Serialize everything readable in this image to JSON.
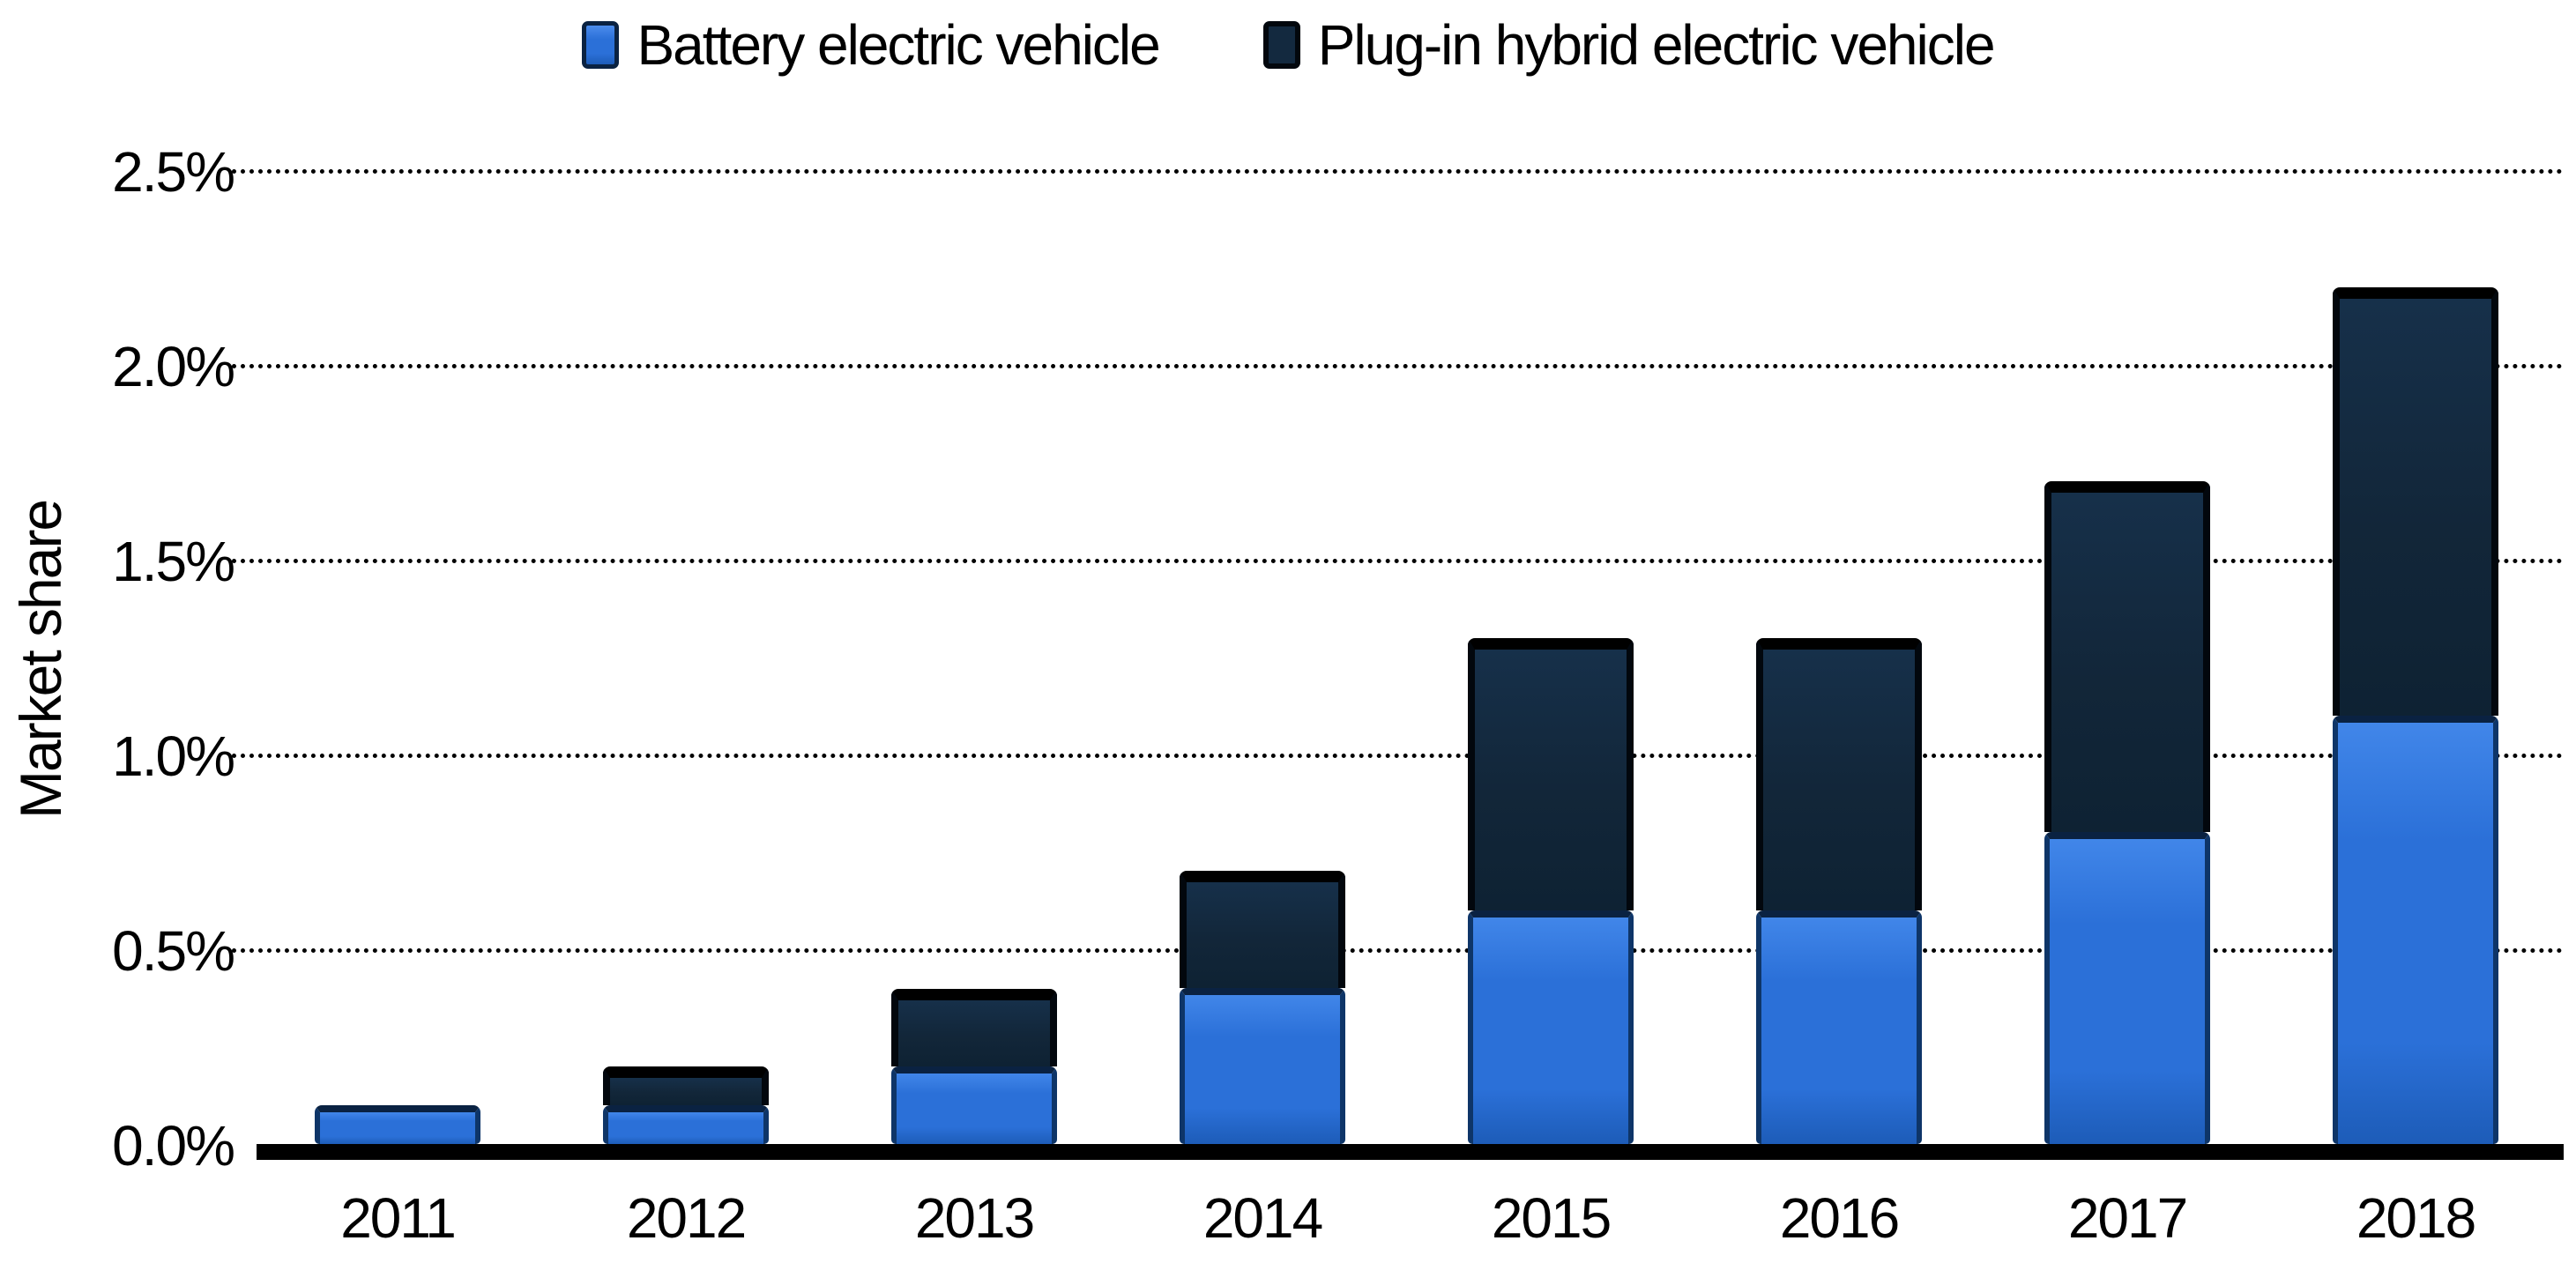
{
  "chart_data": {
    "type": "bar",
    "stacked": true,
    "categories": [
      "2011",
      "2012",
      "2013",
      "2014",
      "2015",
      "2016",
      "2017",
      "2018"
    ],
    "series": [
      {
        "name": "Battery electric vehicle",
        "color": "#2b70d8",
        "values": [
          0.1,
          0.1,
          0.2,
          0.4,
          0.6,
          0.6,
          0.8,
          1.1
        ]
      },
      {
        "name": "Plug-in hybrid electric vehicle",
        "color": "#13293f",
        "values": [
          0.0,
          0.1,
          0.2,
          0.3,
          0.7,
          0.7,
          0.9,
          1.1
        ]
      }
    ],
    "totals": [
      0.1,
      0.2,
      0.4,
      0.7,
      1.3,
      1.3,
      1.7,
      2.2
    ],
    "title": "",
    "xlabel": "",
    "ylabel": "Market share",
    "ylim": [
      0,
      2.5
    ],
    "yticks": [
      {
        "label": "0.0%",
        "value": 0.0
      },
      {
        "label": "0.5%",
        "value": 0.5
      },
      {
        "label": "1.0%",
        "value": 1.0
      },
      {
        "label": "1.5%",
        "value": 1.5
      },
      {
        "label": "2.0%",
        "value": 2.0
      },
      {
        "label": "2.5%",
        "value": 2.5
      }
    ],
    "grid": "horizontal-dotted",
    "legend_position": "top-center",
    "legend": [
      {
        "label": "Battery electric vehicle",
        "color": "#2b70d8"
      },
      {
        "label": "Plug-in hybrid electric vehicle",
        "color": "#13293f"
      }
    ],
    "axis_color": "#000000",
    "background_color": "#ffffff"
  }
}
